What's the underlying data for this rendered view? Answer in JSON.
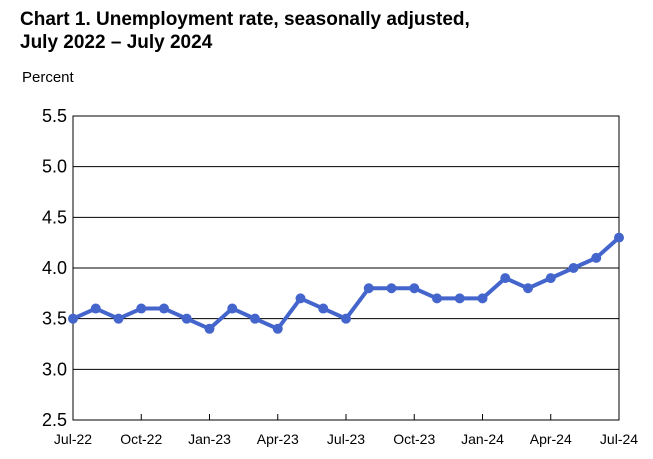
{
  "title_line1": "Chart 1. Unemployment rate, seasonally adjusted,",
  "title_line2": "July 2022 – July 2024",
  "chart_data": {
    "type": "line",
    "title": "Chart 1. Unemployment rate, seasonally adjusted, July 2022 – July 2024",
    "ylabel": "Percent",
    "xlabel": "",
    "ylim": [
      2.5,
      5.5
    ],
    "yticks": [
      "2.5",
      "3.0",
      "3.5",
      "4.0",
      "4.5",
      "5.0",
      "5.5"
    ],
    "xtick_labels": [
      "Jul-22",
      "Oct-22",
      "Jan-23",
      "Apr-23",
      "Jul-23",
      "Oct-23",
      "Jan-24",
      "Apr-24",
      "Jul-24"
    ],
    "grid": "horizontal",
    "line_color": "#4466cc",
    "x": [
      "Jul-22",
      "Aug-22",
      "Sep-22",
      "Oct-22",
      "Nov-22",
      "Dec-22",
      "Jan-23",
      "Feb-23",
      "Mar-23",
      "Apr-23",
      "May-23",
      "Jun-23",
      "Jul-23",
      "Aug-23",
      "Sep-23",
      "Oct-23",
      "Nov-23",
      "Dec-23",
      "Jan-24",
      "Feb-24",
      "Mar-24",
      "Apr-24",
      "May-24",
      "Jun-24",
      "Jul-24"
    ],
    "series": [
      {
        "values": [
          3.5,
          3.6,
          3.5,
          3.6,
          3.6,
          3.5,
          3.4,
          3.6,
          3.5,
          3.4,
          3.7,
          3.6,
          3.5,
          3.8,
          3.8,
          3.8,
          3.7,
          3.7,
          3.7,
          3.9,
          3.8,
          3.9,
          4.0,
          4.1,
          4.3
        ]
      }
    ]
  }
}
